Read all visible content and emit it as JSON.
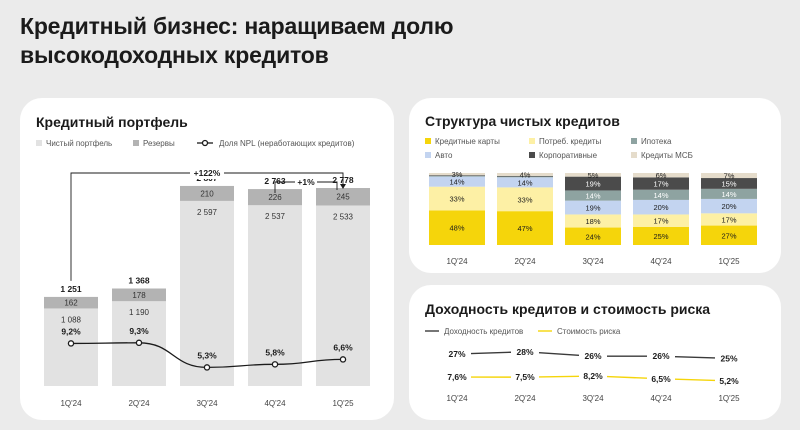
{
  "page": {
    "title_line1": "Кредитный бизнес: наращиваем долю",
    "title_line2": "высокодоходных кредитов"
  },
  "colors": {
    "portfolio": "#e2e2e2",
    "reserves": "#b3b3b3",
    "npl_line": "#1b1b1b",
    "cards": "#f5d50b",
    "consumer": "#fdf0a5",
    "mortgage": "#8ea3a1",
    "auto": "#c3d4f0",
    "corporate": "#4b4b4b",
    "sme": "#e5dccb",
    "yield_line": "#3a3a3a",
    "risk_line": "#f5d50b"
  },
  "portfolio_card": {
    "title": "Кредитный портфель",
    "legend": [
      "Чистый портфель",
      "Резервы",
      "Доля NPL (неработающих кредитов)"
    ]
  },
  "structure_card": {
    "title": "Структура чистых кредитов",
    "legend": [
      "Кредитные карты",
      "Потреб. кредиты",
      "Ипотека",
      "Авто",
      "Корпоративные",
      "Кредиты МСБ"
    ]
  },
  "yield_card": {
    "title": "Доходность кредитов и стоимость риска",
    "legend": [
      "Доходность кредитов",
      "Стоимость риска"
    ]
  },
  "chart_data": [
    {
      "type": "bar",
      "title": "Кредитный портфель",
      "categories": [
        "1Q'24",
        "2Q'24",
        "3Q'24",
        "4Q'24",
        "1Q'25"
      ],
      "series": [
        {
          "name": "Чистый портфель",
          "values": [
            1088,
            1190,
            2597,
            2537,
            2533
          ],
          "labels": [
            "1 088",
            "1 190",
            "2 597",
            "2 537",
            "2 533"
          ]
        },
        {
          "name": "Резервы",
          "values": [
            162,
            178,
            210,
            226,
            245
          ],
          "labels": [
            "162",
            "178",
            "210",
            "226",
            "245"
          ]
        }
      ],
      "totals": [
        1251,
        1368,
        2807,
        2763,
        2778
      ],
      "total_labels": [
        "1 251",
        "1 368",
        "2 807",
        "2 763",
        "2 778"
      ],
      "line_series": {
        "name": "Доля NPL (неработающих кредитов)",
        "values": [
          9.2,
          9.3,
          5.3,
          5.8,
          6.6
        ],
        "labels": [
          "9,2%",
          "9,3%",
          "5,3%",
          "5,8%",
          "6,6%"
        ]
      },
      "annotations": [
        "+122%",
        "+1%"
      ],
      "stacked": true
    },
    {
      "type": "bar",
      "title": "Структура чистых кредитов",
      "categories": [
        "1Q'24",
        "2Q'24",
        "3Q'24",
        "4Q'24",
        "1Q'25"
      ],
      "stacked": true,
      "percent": true,
      "series": [
        {
          "name": "Кредитные карты",
          "values": [
            48,
            47,
            24,
            25,
            27
          ],
          "labels": [
            "48%",
            "47%",
            "24%",
            "25%",
            "27%"
          ]
        },
        {
          "name": "Потреб. кредиты",
          "values": [
            33,
            33,
            18,
            17,
            17
          ],
          "labels": [
            "33%",
            "33%",
            "18%",
            "17%",
            "17%"
          ]
        },
        {
          "name": "Авто",
          "values": [
            14,
            14,
            19,
            20,
            20
          ],
          "labels": [
            "14%",
            "14%",
            "19%",
            "20%",
            "20%"
          ]
        },
        {
          "name": "Ипотека",
          "values": [
            1,
            1,
            14,
            14,
            14
          ],
          "labels": [
            "",
            "",
            "14%",
            "14%",
            "14%"
          ]
        },
        {
          "name": "Корпоративные",
          "values": [
            1,
            1,
            19,
            17,
            15
          ],
          "labels": [
            "",
            "",
            "19%",
            "17%",
            "15%"
          ]
        },
        {
          "name": "Кредиты МСБ",
          "values": [
            3,
            4,
            5,
            6,
            7
          ],
          "labels": [
            "3%",
            "4%",
            "5%",
            "6%",
            "7%"
          ]
        }
      ]
    },
    {
      "type": "line",
      "title": "Доходность кредитов и стоимость риска",
      "categories": [
        "1Q'24",
        "2Q'24",
        "3Q'24",
        "4Q'24",
        "1Q'25"
      ],
      "series": [
        {
          "name": "Доходность кредитов",
          "values": [
            27,
            28,
            26,
            26,
            25
          ],
          "labels": [
            "27%",
            "28%",
            "26%",
            "26%",
            "25%"
          ]
        },
        {
          "name": "Стоимость риска",
          "values": [
            7.6,
            7.5,
            8.2,
            6.5,
            5.2
          ],
          "labels": [
            "7,6%",
            "7,5%",
            "8,2%",
            "6,5%",
            "5,2%"
          ]
        }
      ]
    }
  ]
}
